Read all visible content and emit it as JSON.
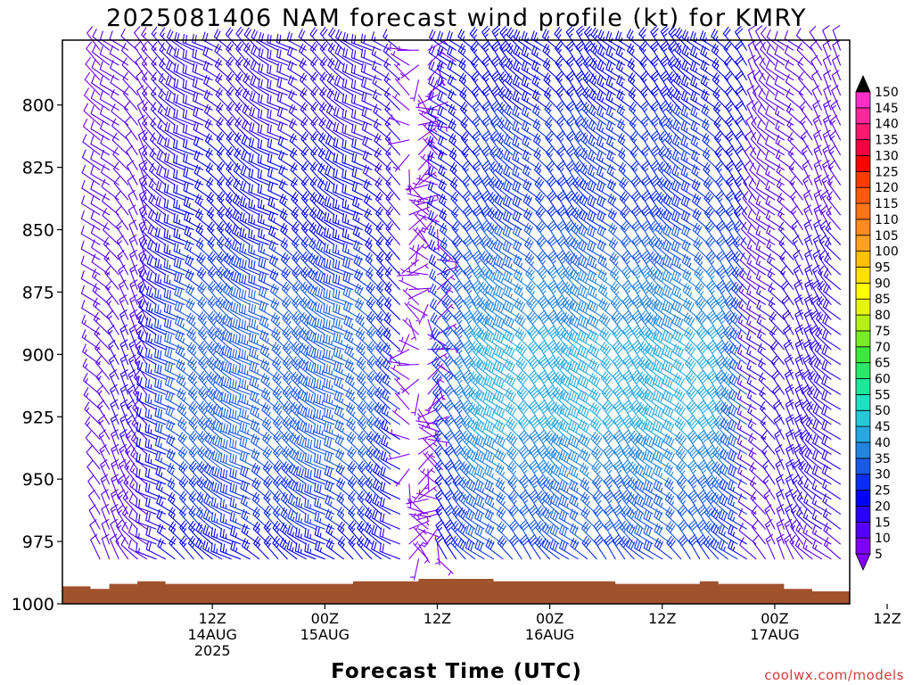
{
  "chart_data": {
    "type": "wind_barb_time_height",
    "title": "2025081406 NAM forecast wind profile (kt) for KMRY",
    "xlabel": "Forecast Time (UTC)",
    "ylabel": "",
    "credit": "coolwx.com/models",
    "y_axis": {
      "reversed": true,
      "ticks": [
        800,
        825,
        850,
        875,
        900,
        925,
        950,
        975,
        1000
      ],
      "range": [
        774,
        1000
      ]
    },
    "x_axis": {
      "range_hours": [
        -4,
        80
      ],
      "ticks": [
        {
          "hour": 12,
          "l1": "12Z",
          "l2": "14AUG",
          "l3": "2025"
        },
        {
          "hour": 24,
          "l1": "00Z",
          "l2": "15AUG",
          "l3": ""
        },
        {
          "hour": 36,
          "l1": "12Z",
          "l2": "",
          "l3": ""
        },
        {
          "hour": 48,
          "l1": "00Z",
          "l2": "16AUG",
          "l3": ""
        },
        {
          "hour": 60,
          "l1": "12Z",
          "l2": "",
          "l3": ""
        },
        {
          "hour": 72,
          "l1": "00Z",
          "l2": "17AUG",
          "l3": ""
        },
        {
          "hour": 84,
          "l1": "12Z",
          "l2": "",
          "l3": ""
        }
      ]
    },
    "colorbar": {
      "levels": [
        5,
        10,
        15,
        20,
        25,
        30,
        35,
        40,
        45,
        50,
        55,
        60,
        65,
        70,
        75,
        80,
        85,
        90,
        95,
        100,
        105,
        110,
        115,
        120,
        125,
        130,
        135,
        140,
        145,
        150
      ],
      "colors": [
        "#8000ff",
        "#5500ff",
        "#2a00ff",
        "#0000ff",
        "#0b2ef5",
        "#1a5ae8",
        "#2384e0",
        "#27a8e0",
        "#26c8d8",
        "#1fe0c0",
        "#1de89a",
        "#2ae86a",
        "#3ee83a",
        "#78ec24",
        "#b4f018",
        "#e6f414",
        "#ffff00",
        "#ffe000",
        "#ffc000",
        "#ffa020",
        "#ff8c20",
        "#ff7414",
        "#ff5a0a",
        "#ff3c00",
        "#ff0000",
        "#f00040",
        "#ff1a6e",
        "#ff2898",
        "#ff30c8",
        "#ff20ff"
      ],
      "over_color": "#000000",
      "under_color": "#8000ff"
    },
    "wind_field": {
      "time_start_hour": 0,
      "time_step_hours": 1,
      "time_count": 84,
      "level_start": 778,
      "level_step": 6,
      "level_count": 38,
      "regimes": [
        {
          "hours": [
            0,
            6
          ],
          "direction_deg": "300-340",
          "speed_kt": "8-18"
        },
        {
          "hours": [
            6,
            33
          ],
          "direction_deg": "290-320",
          "speed_kt": "10-35"
        },
        {
          "hours": [
            33,
            37
          ],
          "direction_deg": "variable",
          "speed_kt": "0-5"
        },
        {
          "hours": [
            37,
            70
          ],
          "direction_deg": "300-330",
          "speed_kt": "15-42"
        },
        {
          "hours": [
            70,
            84
          ],
          "direction_deg": "300-340",
          "speed_kt": "8-20"
        }
      ],
      "max_wind_kt": 42
    },
    "terrain": {
      "color": "#a0522d",
      "surface_pressure_points": [
        [
          -4,
          993
        ],
        [
          -2,
          993
        ],
        [
          -1,
          994
        ],
        [
          0,
          994
        ],
        [
          1,
          992
        ],
        [
          4,
          991
        ],
        [
          7,
          992
        ],
        [
          25,
          992
        ],
        [
          27,
          991
        ],
        [
          32,
          991
        ],
        [
          34,
          990
        ],
        [
          39,
          990
        ],
        [
          42,
          991
        ],
        [
          49,
          991
        ],
        [
          55,
          992
        ],
        [
          62,
          992
        ],
        [
          64,
          991
        ],
        [
          66,
          992
        ],
        [
          69,
          992
        ],
        [
          73,
          994
        ],
        [
          76,
          995
        ],
        [
          80,
          995
        ]
      ]
    }
  }
}
